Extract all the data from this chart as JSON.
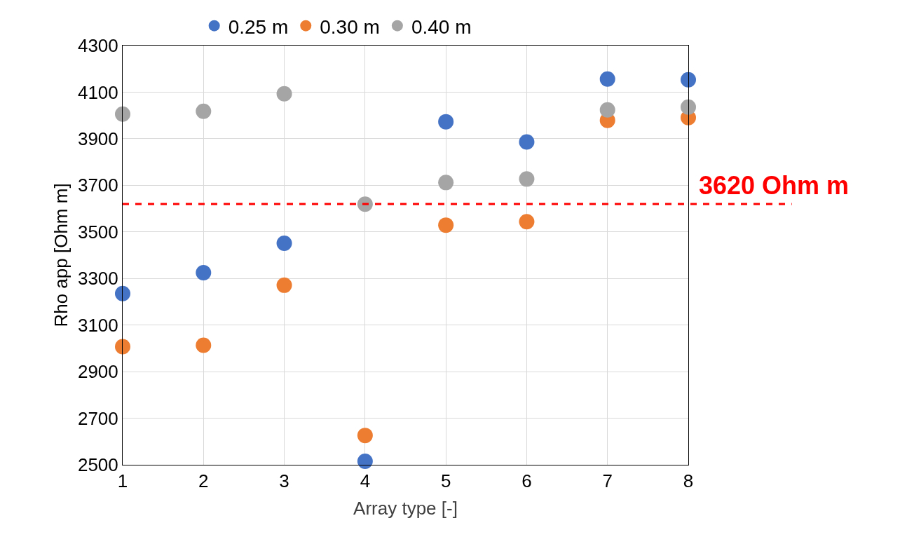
{
  "chart_data": {
    "type": "scatter",
    "xlabel": "Array type [-]",
    "ylabel": "Rho app [Ohm m]",
    "x": [
      1,
      2,
      3,
      4,
      5,
      6,
      7,
      8
    ],
    "series": [
      {
        "name": "0.25 m",
        "color": "#4472c4",
        "values": [
          3235,
          3325,
          3451,
          2515,
          3973,
          3886,
          4156,
          4153
        ]
      },
      {
        "name": "0.30 m",
        "color": "#ed7d31",
        "values": [
          3007,
          3013,
          3271,
          2626,
          3529,
          3544,
          3979,
          3991
        ]
      },
      {
        "name": "0.40 m",
        "color": "#a5a5a5",
        "values": [
          4006,
          4018,
          4093,
          3619,
          3712,
          3727,
          4024,
          4036
        ]
      }
    ],
    "xlim": [
      1,
      8
    ],
    "xticks": [
      1,
      2,
      3,
      4,
      5,
      6,
      7,
      8
    ],
    "ylim": [
      2500,
      4300
    ],
    "yticks": [
      2500,
      2700,
      2900,
      3100,
      3300,
      3500,
      3700,
      3900,
      4100,
      4300
    ],
    "ref_lines": [
      {
        "axis": "y",
        "value": 3620,
        "label": "3620 Ohm m",
        "color": "#ff0000",
        "line_style": "dashed"
      }
    ],
    "grid": true,
    "legend": "top",
    "marker": "circle"
  }
}
